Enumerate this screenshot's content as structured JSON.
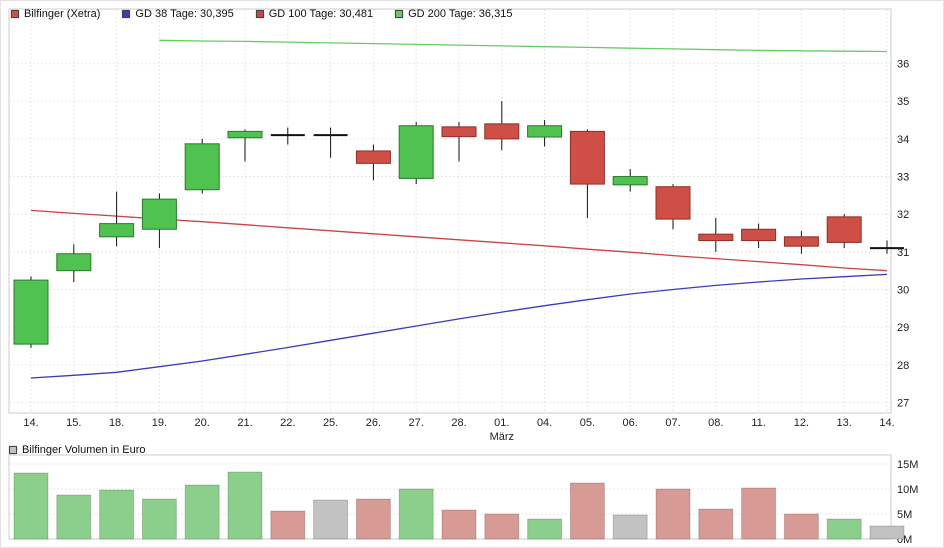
{
  "colors": {
    "up_fill": "#4fc24f",
    "up_stroke": "#2b7a2b",
    "down_fill": "#cd4f45",
    "down_stroke": "#8f2f28",
    "wick": "#111111",
    "ma38": "#3b3bbf",
    "ma100": "#c94444",
    "ma200": "#63cf63",
    "vol_up": "#8ccf8c",
    "vol_down": "#d89a94",
    "vol_neutral": "#c2c2c2",
    "grid": "#e7e7e7",
    "border": "#cccccc",
    "text": "#222222"
  },
  "legend": {
    "items": [
      {
        "label": "Bilfinger (Xetra)",
        "color": "#cd4f45"
      },
      {
        "label": "GD 38 Tage: 30,395",
        "color": "#3b3bbf"
      },
      {
        "label": "GD 100 Tage: 30,481",
        "color": "#c94444"
      },
      {
        "label": "GD 200 Tage: 36,315",
        "color": "#63cf63"
      }
    ]
  },
  "volume": {
    "title": "Bilfinger Volumen in Euro",
    "marker_color": "#c2c2c2"
  },
  "chart_data": {
    "type": "candlestick+volume",
    "title": "Bilfinger (Xetra)",
    "month_label": "März",
    "categories": [
      "14.",
      "15.",
      "18.",
      "19.",
      "20.",
      "21.",
      "22.",
      "25.",
      "26.",
      "27.",
      "28.",
      "01.",
      "04.",
      "05.",
      "06.",
      "07.",
      "08.",
      "11.",
      "12.",
      "13.",
      "14."
    ],
    "ohlc": [
      [
        28.55,
        30.35,
        28.45,
        30.25
      ],
      [
        30.5,
        31.2,
        30.2,
        30.95
      ],
      [
        31.4,
        32.6,
        31.15,
        31.75
      ],
      [
        31.6,
        32.55,
        31.1,
        32.4
      ],
      [
        32.65,
        34.0,
        32.55,
        33.87
      ],
      [
        34.03,
        34.25,
        33.4,
        34.2
      ],
      [
        34.1,
        34.3,
        33.85,
        34.1
      ],
      [
        34.1,
        34.3,
        33.5,
        34.1
      ],
      [
        33.68,
        33.85,
        32.9,
        33.35
      ],
      [
        32.95,
        34.45,
        32.8,
        34.35
      ],
      [
        34.32,
        34.45,
        33.4,
        34.06
      ],
      [
        34.4,
        35.0,
        33.7,
        34.0
      ],
      [
        34.05,
        34.5,
        33.8,
        34.35
      ],
      [
        34.2,
        34.25,
        31.9,
        32.8
      ],
      [
        32.78,
        33.2,
        32.6,
        33.0
      ],
      [
        32.73,
        32.8,
        31.6,
        31.87
      ],
      [
        31.47,
        31.9,
        31.0,
        31.3
      ],
      [
        31.6,
        31.75,
        31.1,
        31.3
      ],
      [
        31.4,
        31.55,
        30.95,
        31.15
      ],
      [
        31.93,
        32.0,
        31.1,
        31.25
      ],
      [
        31.1,
        31.3,
        30.95,
        31.1
      ]
    ],
    "dir": [
      "up",
      "up",
      "up",
      "up",
      "up",
      "up",
      "doji",
      "doji",
      "down",
      "up",
      "down",
      "down",
      "up",
      "down",
      "up",
      "down",
      "down",
      "down",
      "down",
      "down",
      "doji"
    ],
    "price_ticks": [
      27,
      28,
      29,
      30,
      31,
      32,
      33,
      34,
      35,
      36
    ],
    "price_range": [
      26.72,
      37.45
    ],
    "ma": {
      "gd38": [
        27.65,
        27.72,
        27.8,
        27.95,
        28.1,
        28.28,
        28.46,
        28.65,
        28.84,
        29.03,
        29.22,
        29.4,
        29.57,
        29.73,
        29.88,
        30.0,
        30.11,
        30.2,
        30.28,
        30.34,
        30.4
      ],
      "gd100": [
        32.1,
        32.02,
        31.95,
        31.87,
        31.8,
        31.72,
        31.64,
        31.56,
        31.48,
        31.4,
        31.32,
        31.24,
        31.16,
        31.07,
        30.99,
        30.9,
        30.82,
        30.74,
        30.66,
        30.57,
        30.5
      ],
      "gd200": [
        null,
        null,
        null,
        36.62,
        36.6,
        36.59,
        36.57,
        36.55,
        36.53,
        36.51,
        36.49,
        36.47,
        36.45,
        36.43,
        36.41,
        36.39,
        36.37,
        36.35,
        36.34,
        36.33,
        36.32
      ]
    },
    "volume_m": [
      13.2,
      8.8,
      9.8,
      8.0,
      10.8,
      13.4,
      5.6,
      7.8,
      8.0,
      10.0,
      5.8,
      5.0,
      4.0,
      11.2,
      4.8,
      10.0,
      6.0,
      10.2,
      5.0,
      4.0,
      2.6
    ],
    "volume_dir": [
      "up",
      "up",
      "up",
      "up",
      "up",
      "up",
      "down",
      "neutral",
      "down",
      "up",
      "down",
      "down",
      "up",
      "down",
      "neutral",
      "down",
      "down",
      "down",
      "down",
      "up",
      "neutral"
    ],
    "volume_ticks": [
      "0M",
      "5M",
      "10M",
      "15M"
    ],
    "volume_range_m": [
      0,
      15
    ]
  }
}
